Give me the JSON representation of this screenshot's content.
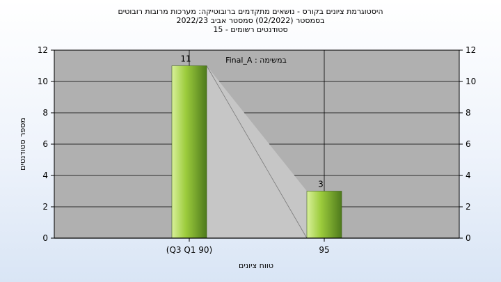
{
  "chart_data": {
    "type": "bar",
    "title_lines": [
      "היסטוגרמת ציונים בקורס - נושאים מתקדמים ברובוטיקה: מערכות מרובות רובוטים",
      "בסמסטר  (02/2022)  סמסטר אביב 2022/23",
      "סטודנטים רשומים - 15"
    ],
    "annotation": "Final_A : במשימה",
    "categories": [
      "(Q3 Q1 90)",
      "95"
    ],
    "values": [
      11,
      3
    ],
    "data_labels": [
      "11",
      "3"
    ],
    "xlabel": "טווח ציונים",
    "ylabel": "מספר סטודנטים",
    "ylim": [
      0,
      12
    ],
    "yticks": [
      0,
      2,
      4,
      6,
      8,
      10,
      12
    ],
    "ytick_labels": [
      "0",
      "2",
      "4",
      "6",
      "8",
      "10",
      "12"
    ],
    "grid": true,
    "colors": {
      "plot_bg": "#b0b0b0",
      "bar_light": "#d8f09a",
      "bar_mid": "#9ccc3c",
      "bar_dark": "#4e7a1c",
      "connector_fill": "#c6c6c6"
    }
  }
}
